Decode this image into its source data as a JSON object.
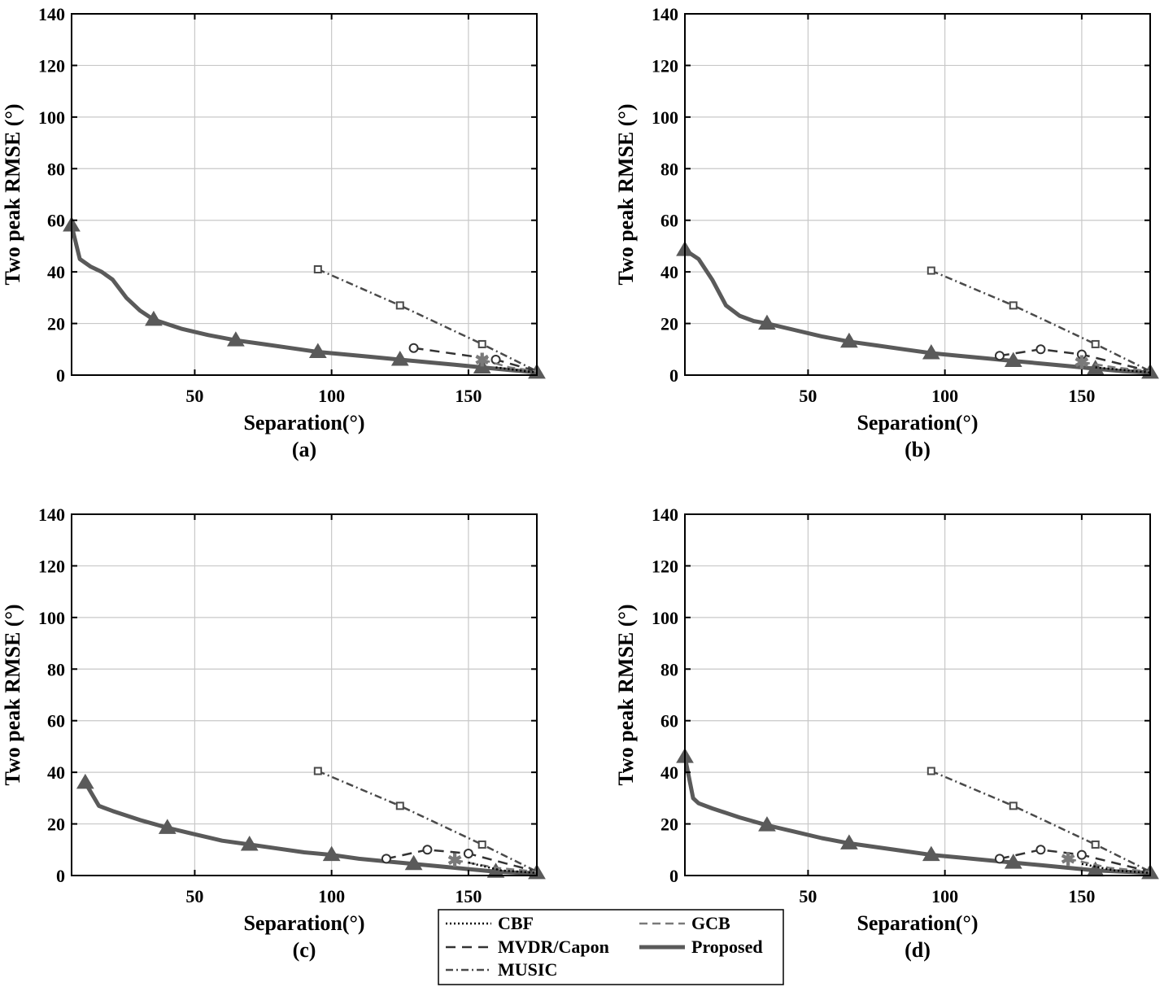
{
  "chart_data": [
    {
      "type": "line",
      "caption": "(a)",
      "xlabel": "Separation(°)",
      "ylabel": "Two peak RMSE (°)",
      "xlim": [
        5,
        175
      ],
      "ylim": [
        0,
        140
      ],
      "xticks": [
        50,
        100,
        150
      ],
      "yticks": [
        0,
        20,
        40,
        60,
        80,
        100,
        120,
        140
      ],
      "grid": true,
      "series": [
        {
          "name": "Proposed",
          "x": [
            5,
            8,
            12,
            16,
            20,
            25,
            30,
            35,
            45,
            55,
            65,
            75,
            85,
            95,
            105,
            115,
            125,
            135,
            145,
            155,
            165,
            175
          ],
          "y": [
            58,
            45,
            42,
            40,
            37,
            30,
            25,
            21.5,
            18,
            15.5,
            13.5,
            12,
            10.5,
            9,
            8,
            7,
            6,
            5,
            4,
            3,
            2,
            1
          ],
          "markers_x": [
            5,
            35,
            65,
            95,
            125,
            155,
            175
          ],
          "markers_y": [
            58,
            21.5,
            13.5,
            9,
            6,
            3,
            1
          ]
        },
        {
          "name": "MUSIC",
          "x": [
            95,
            125,
            155,
            175
          ],
          "y": [
            41,
            27,
            12,
            1.5
          ]
        },
        {
          "name": "MVDR/Capon",
          "x": [
            130,
            160,
            175
          ],
          "y": [
            10.5,
            6,
            1.5
          ]
        },
        {
          "name": "GCB",
          "x": [
            155,
            165,
            175
          ],
          "y": [
            6,
            3,
            1.5
          ]
        },
        {
          "name": "CBF",
          "x": [
            160,
            175
          ],
          "y": [
            3,
            1
          ]
        }
      ]
    },
    {
      "type": "line",
      "caption": "(b)",
      "xlabel": "Separation(°)",
      "ylabel": "Two peak RMSE (°)",
      "xlim": [
        5,
        175
      ],
      "ylim": [
        0,
        140
      ],
      "xticks": [
        50,
        100,
        150
      ],
      "yticks": [
        0,
        20,
        40,
        60,
        80,
        100,
        120,
        140
      ],
      "grid": true,
      "series": [
        {
          "name": "Proposed",
          "x": [
            5,
            10,
            15,
            20,
            25,
            30,
            35,
            45,
            55,
            65,
            75,
            85,
            95,
            105,
            115,
            125,
            135,
            145,
            155,
            165,
            175
          ],
          "y": [
            48.5,
            45,
            37,
            27,
            23,
            21,
            20,
            17.5,
            15,
            13,
            11.5,
            10,
            8.5,
            7.5,
            6.5,
            5.5,
            4.5,
            3.5,
            2.5,
            1.5,
            1
          ],
          "markers_x": [
            5,
            35,
            65,
            95,
            125,
            155,
            175
          ],
          "markers_y": [
            48.5,
            20,
            13,
            8.5,
            5.5,
            2.5,
            1
          ]
        },
        {
          "name": "MUSIC",
          "x": [
            95,
            125,
            155,
            175
          ],
          "y": [
            40.5,
            27,
            12,
            1.5
          ]
        },
        {
          "name": "MVDR/Capon",
          "x": [
            120,
            135,
            150,
            175
          ],
          "y": [
            7.5,
            10,
            8,
            1.5
          ]
        },
        {
          "name": "GCB",
          "x": [
            150,
            162,
            175
          ],
          "y": [
            5,
            3,
            1.5
          ]
        },
        {
          "name": "CBF",
          "x": [
            155,
            175
          ],
          "y": [
            3,
            1
          ]
        }
      ]
    },
    {
      "type": "line",
      "caption": "(c)",
      "xlabel": "Separation(°)",
      "ylabel": "Two peak RMSE (°)",
      "xlim": [
        5,
        175
      ],
      "ylim": [
        0,
        140
      ],
      "xticks": [
        50,
        100,
        150
      ],
      "yticks": [
        0,
        20,
        40,
        60,
        80,
        100,
        120,
        140
      ],
      "grid": true,
      "series": [
        {
          "name": "Proposed",
          "x": [
            10,
            15,
            20,
            30,
            40,
            50,
            60,
            70,
            80,
            90,
            100,
            110,
            120,
            130,
            140,
            150,
            160,
            170,
            175
          ],
          "y": [
            36,
            27,
            25,
            21.5,
            18.5,
            16,
            13.5,
            12,
            10.5,
            9,
            8,
            6.5,
            5.5,
            4.5,
            3.5,
            2.5,
            1.5,
            1,
            1
          ],
          "markers_x": [
            10,
            40,
            70,
            100,
            130,
            160,
            175
          ],
          "markers_y": [
            36,
            18.5,
            12,
            8,
            4.5,
            1.5,
            1
          ]
        },
        {
          "name": "MUSIC",
          "x": [
            95,
            125,
            155,
            175
          ],
          "y": [
            40.5,
            27,
            12,
            1.5
          ]
        },
        {
          "name": "MVDR/Capon",
          "x": [
            120,
            135,
            150,
            175
          ],
          "y": [
            6.5,
            10,
            8.5,
            1.5
          ]
        },
        {
          "name": "GCB",
          "x": [
            145,
            160,
            175
          ],
          "y": [
            6,
            3,
            1.5
          ]
        },
        {
          "name": "CBF",
          "x": [
            150,
            162,
            175
          ],
          "y": [
            5,
            2,
            1
          ]
        }
      ]
    },
    {
      "type": "line",
      "caption": "(d)",
      "xlabel": "Separation(°)",
      "ylabel": "Two peak RMSE (°)",
      "xlim": [
        5,
        175
      ],
      "ylim": [
        0,
        140
      ],
      "xticks": [
        50,
        100,
        150
      ],
      "yticks": [
        0,
        20,
        40,
        60,
        80,
        100,
        120,
        140
      ],
      "grid": true,
      "series": [
        {
          "name": "Proposed",
          "x": [
            5,
            8,
            10,
            15,
            25,
            35,
            45,
            55,
            65,
            75,
            85,
            95,
            105,
            115,
            125,
            135,
            145,
            155,
            165,
            175
          ],
          "y": [
            46,
            30,
            28,
            26,
            22.5,
            19.5,
            17,
            14.5,
            12.5,
            11,
            9.5,
            8,
            7,
            6,
            5,
            4,
            3,
            2,
            1.5,
            1
          ],
          "markers_x": [
            5,
            35,
            65,
            95,
            125,
            155,
            175
          ],
          "markers_y": [
            46,
            19.5,
            12.5,
            8,
            5,
            2,
            1
          ]
        },
        {
          "name": "MUSIC",
          "x": [
            95,
            125,
            155,
            175
          ],
          "y": [
            40.5,
            27,
            12,
            1.5
          ]
        },
        {
          "name": "MVDR/Capon",
          "x": [
            120,
            135,
            150,
            175
          ],
          "y": [
            6.5,
            10,
            8,
            1.5
          ]
        },
        {
          "name": "GCB",
          "x": [
            145,
            160,
            175
          ],
          "y": [
            6.5,
            3,
            1.5
          ]
        },
        {
          "name": "CBF",
          "x": [
            150,
            162,
            175
          ],
          "y": [
            4.5,
            2,
            1
          ]
        }
      ]
    }
  ],
  "legend": {
    "position": "bottom-center",
    "entries": [
      {
        "label": "CBF",
        "style": "dotted",
        "color": "#000000"
      },
      {
        "label": "GCB",
        "style": "dashed",
        "color": "#777777"
      },
      {
        "label": "MVDR/Capon",
        "style": "dashed",
        "color": "#333333"
      },
      {
        "label": "Proposed",
        "style": "solid",
        "color": "#555555"
      },
      {
        "label": "MUSIC",
        "style": "dashdot",
        "color": "#444444"
      }
    ]
  },
  "colors": {
    "proposed": "#5a5a5a",
    "music": "#4a4a4a",
    "mvdr": "#333333",
    "gcb": "#7a7a7a",
    "cbf": "#000000",
    "grid": "#c8c8c8"
  }
}
